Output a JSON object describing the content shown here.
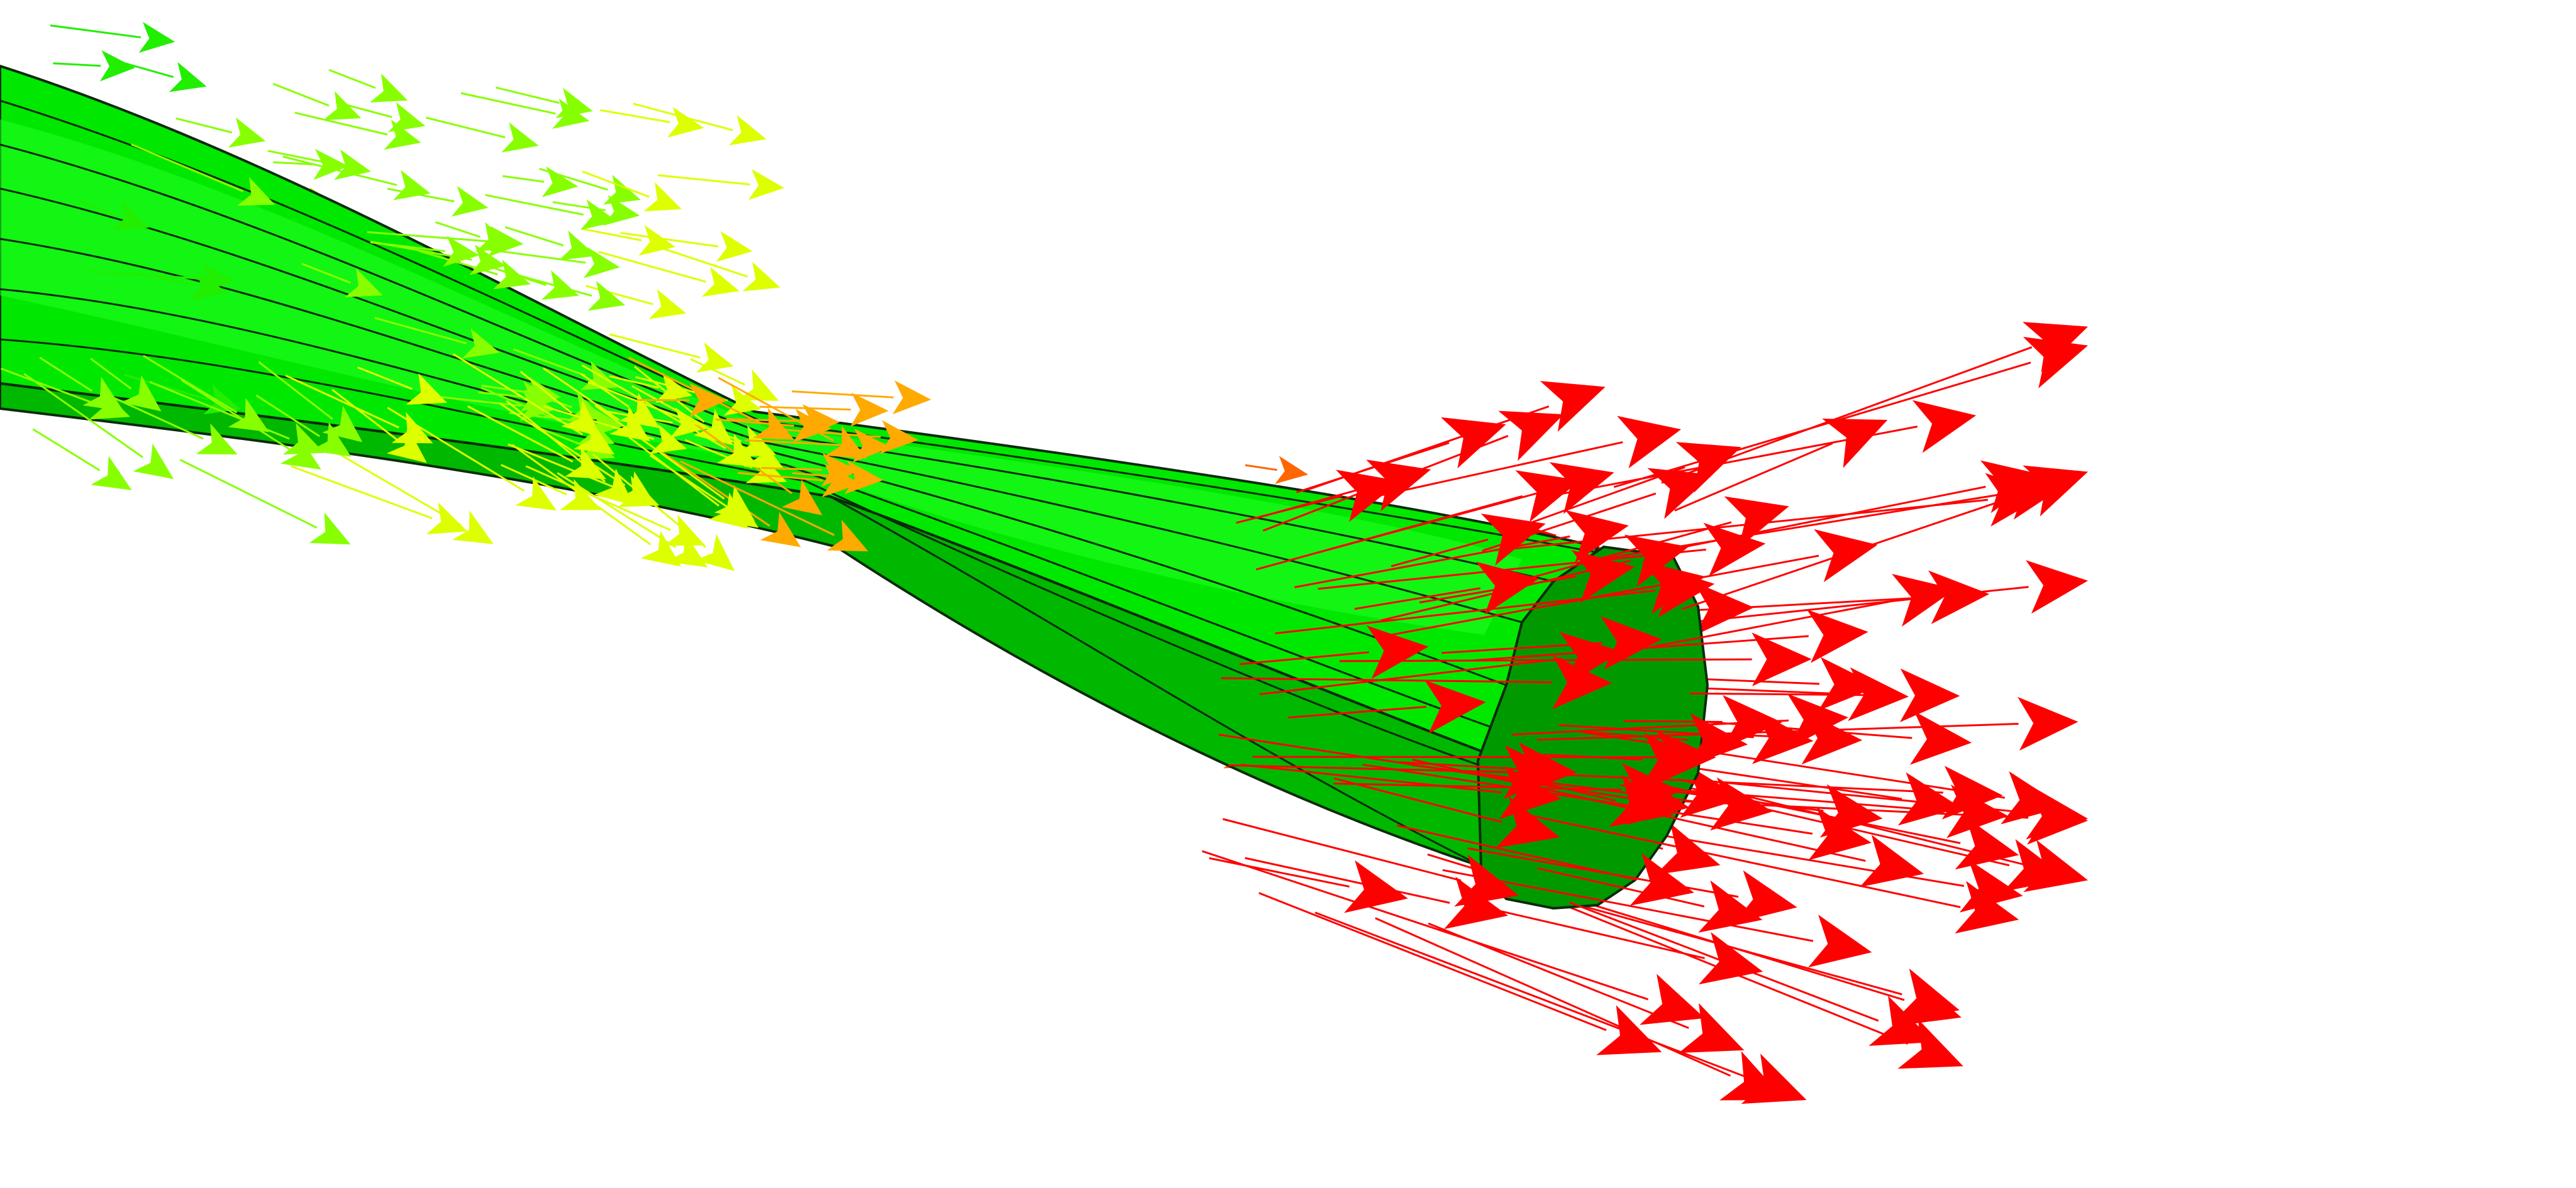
{
  "viewport": {
    "background": "#ffffff",
    "outline_color": "#0a2a0a",
    "tube_face_color": "#00f000",
    "tube_shade_color": "#00b800",
    "tube_dark_color": "#009f00",
    "end_cap_color": "#009a00"
  },
  "vector_field": {
    "colormap_low_to_high": [
      "#22ee00",
      "#88ff00",
      "#ddff00",
      "#ffaa00",
      "#ff0000"
    ],
    "glyph": "arrow-icon"
  }
}
